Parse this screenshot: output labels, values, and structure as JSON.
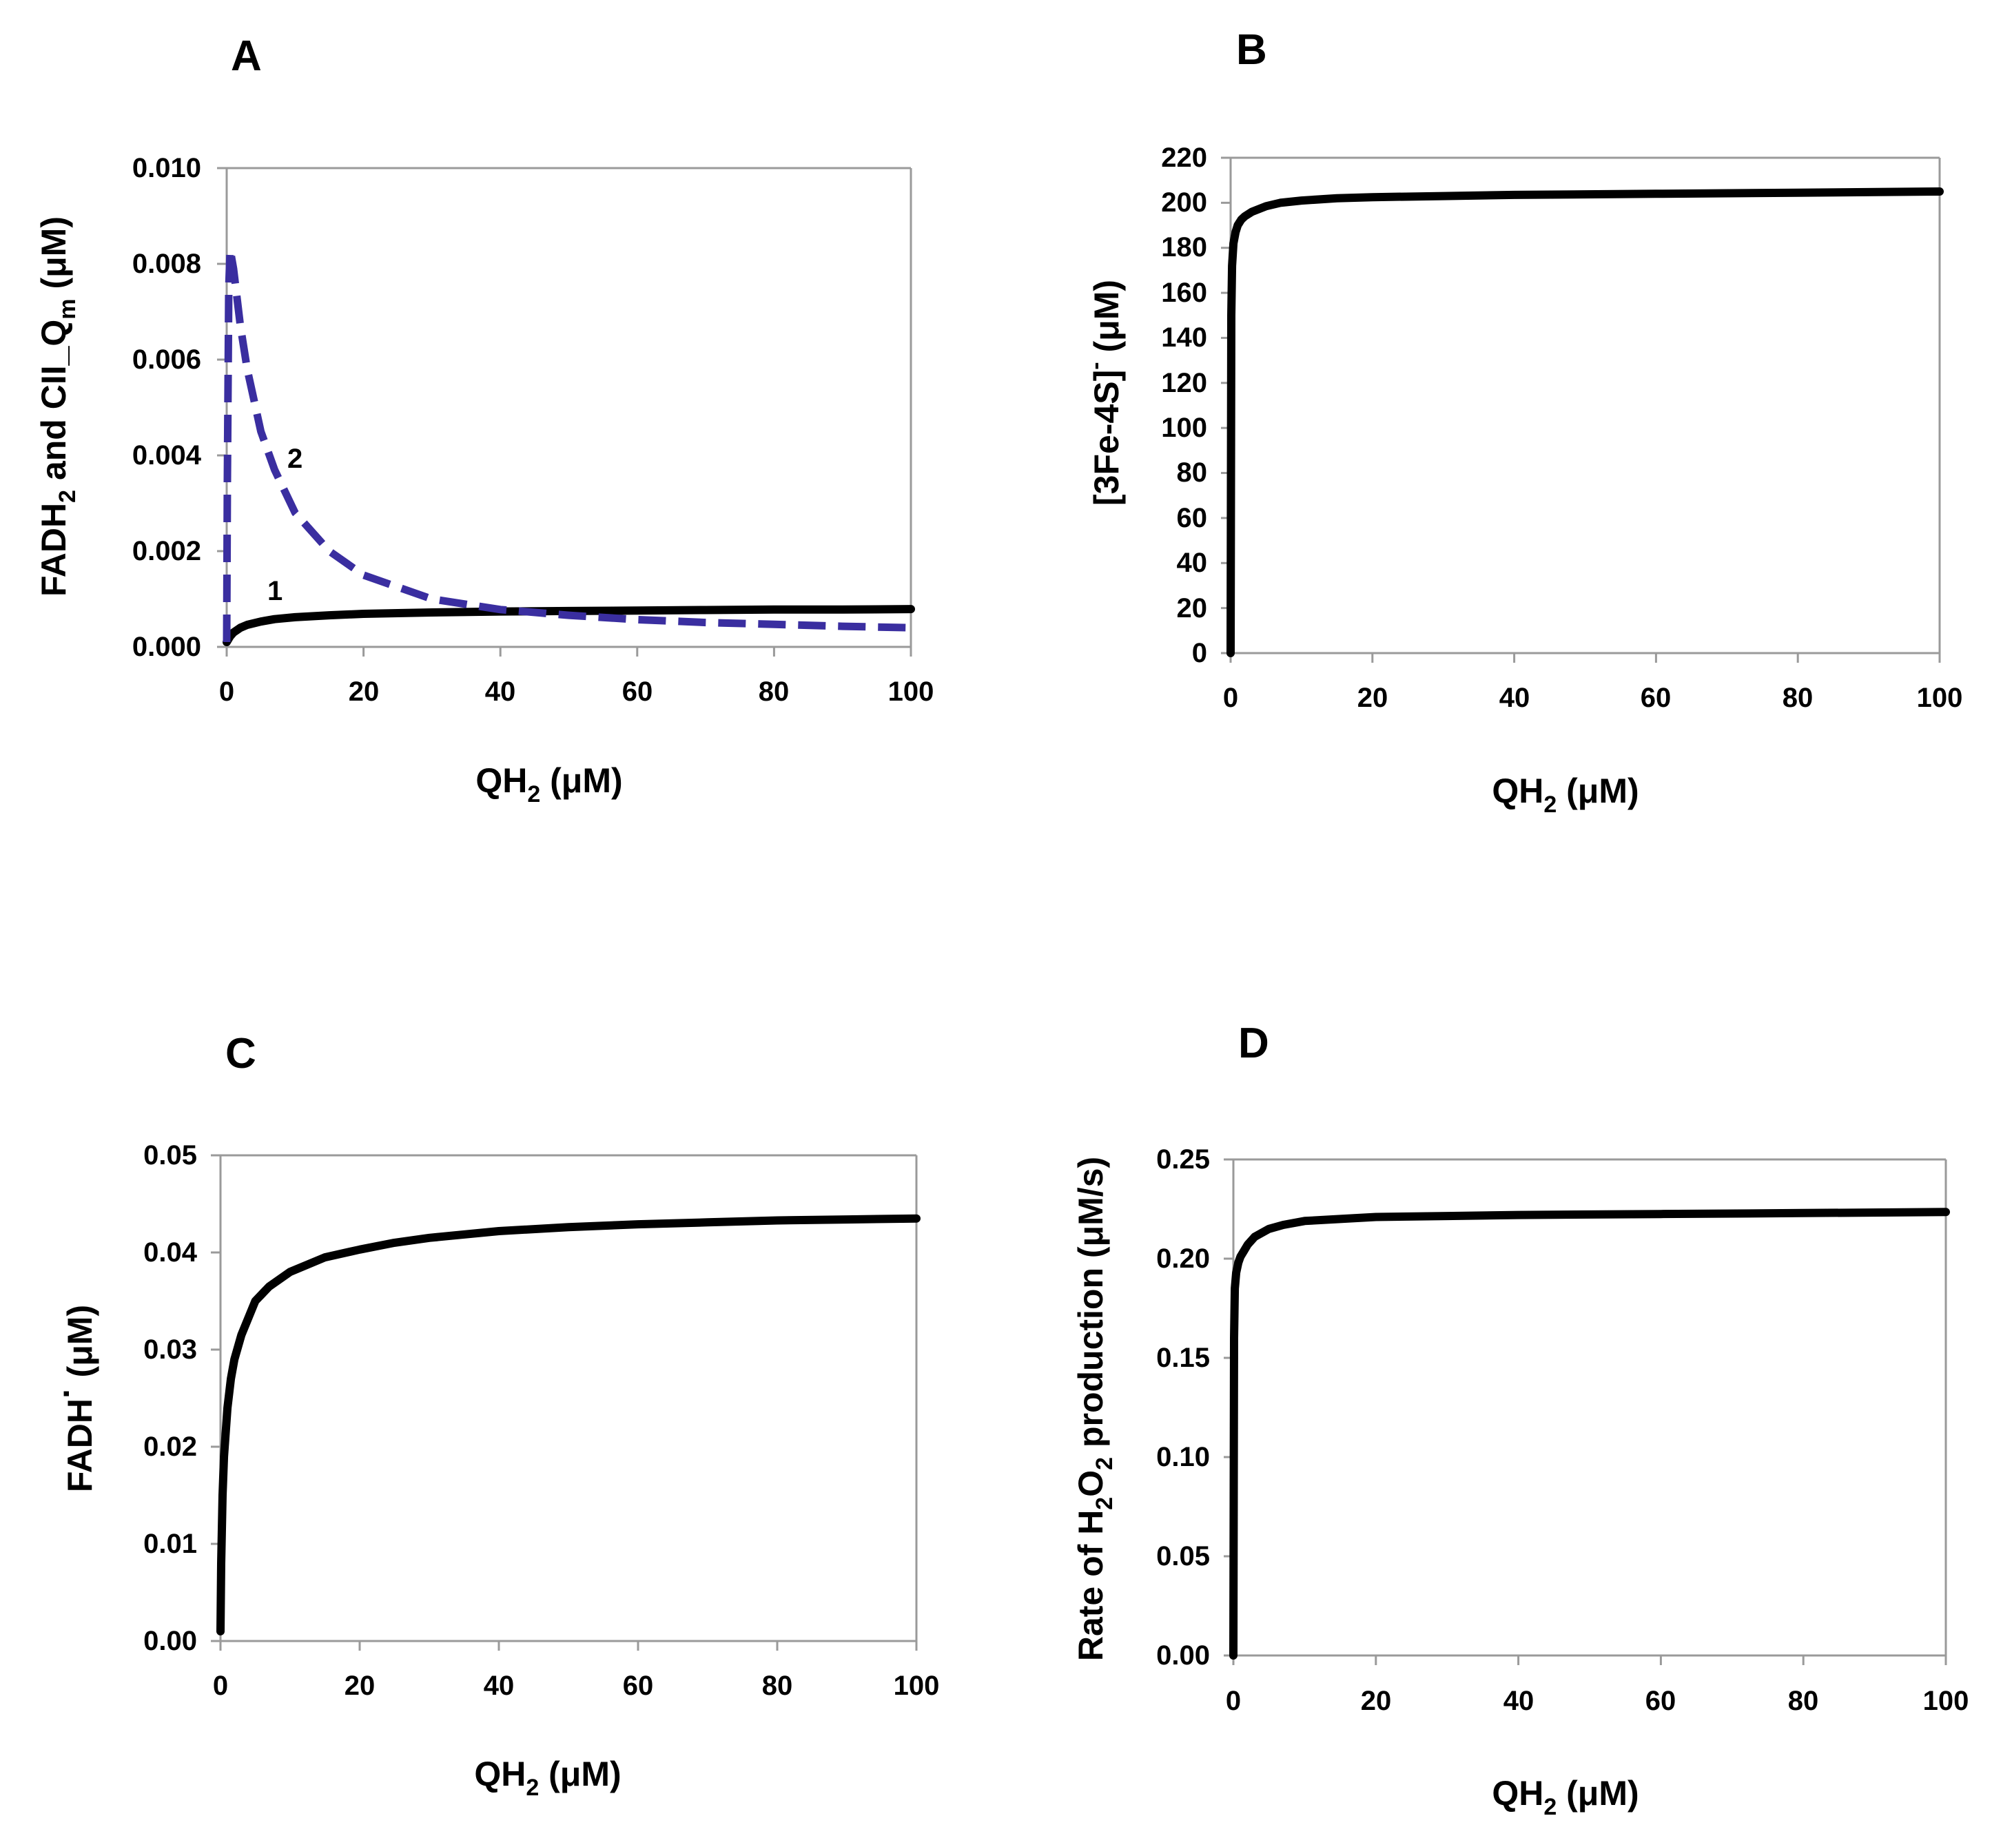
{
  "chart_data": [
    {
      "panel": "A",
      "type": "line",
      "xlabel_main": "QH",
      "xlabel_sub": "2",
      "xlabel_tail": " (μM)",
      "ylabel_parts": [
        "FADH",
        "2",
        " and CII_Q",
        "m",
        "  (μM)"
      ],
      "xlim": [
        0,
        100
      ],
      "ylim": [
        0,
        0.01
      ],
      "xticks": [
        "0",
        "20",
        "40",
        "60",
        "80",
        "100"
      ],
      "yticks": [
        "0.000",
        "0.002",
        "0.004",
        "0.006",
        "0.008",
        "0.010"
      ],
      "grid": false,
      "series": [
        {
          "name": "1",
          "color": "#000000",
          "style": "solid",
          "x": [
            0,
            0.5,
            1,
            2,
            3,
            5,
            7,
            10,
            15,
            20,
            30,
            40,
            50,
            60,
            70,
            80,
            90,
            100
          ],
          "y": [
            0.0001,
            0.00022,
            0.0003,
            0.0004,
            0.00046,
            0.00053,
            0.00058,
            0.00062,
            0.00066,
            0.00069,
            0.00072,
            0.00074,
            0.00075,
            0.00076,
            0.00077,
            0.00078,
            0.00078,
            0.00079
          ]
        },
        {
          "name": "2",
          "color": "#3a2ea0",
          "style": "dashed",
          "x": [
            0,
            0.1,
            0.3,
            0.5,
            1,
            2,
            3,
            5,
            7,
            10,
            15,
            20,
            30,
            40,
            50,
            60,
            70,
            80,
            90,
            100
          ],
          "y": [
            0.0001,
            0.0035,
            0.0075,
            0.0083,
            0.0079,
            0.0067,
            0.0058,
            0.0045,
            0.0037,
            0.0028,
            0.002,
            0.0015,
            0.001,
            0.00078,
            0.00066,
            0.00057,
            0.00051,
            0.00047,
            0.00043,
            0.0004
          ]
        }
      ]
    },
    {
      "panel": "B",
      "type": "line",
      "xlabel_main": "QH",
      "xlabel_sub": "2",
      "xlabel_tail": " (μM)",
      "ylabel_parts": [
        "[3Fe-4S]",
        "-",
        "  (μM)"
      ],
      "xlim": [
        0,
        100
      ],
      "ylim": [
        0,
        220
      ],
      "xticks": [
        "0",
        "20",
        "40",
        "60",
        "80",
        "100"
      ],
      "yticks": [
        "0",
        "20",
        "40",
        "60",
        "80",
        "100",
        "120",
        "140",
        "160",
        "180",
        "200",
        "220"
      ],
      "grid": false,
      "series": [
        {
          "color": "#000000",
          "style": "solid",
          "x": [
            0,
            0.1,
            0.2,
            0.4,
            0.7,
            1,
            1.5,
            2,
            3,
            5,
            7,
            10,
            15,
            20,
            30,
            40,
            60,
            80,
            100
          ],
          "y": [
            0,
            150,
            172,
            182,
            187,
            190,
            192.5,
            194,
            196,
            198.5,
            200,
            201,
            202,
            202.5,
            203,
            203.5,
            204,
            204.5,
            205
          ]
        }
      ]
    },
    {
      "panel": "C",
      "type": "line",
      "xlabel_main": "QH",
      "xlabel_sub": "2",
      "xlabel_tail": " (μM)",
      "ylabel_parts": [
        "FADH",
        "·",
        " (μM)"
      ],
      "xlim": [
        0,
        100
      ],
      "ylim": [
        0,
        0.05
      ],
      "xticks": [
        "0",
        "20",
        "40",
        "60",
        "80",
        "100"
      ],
      "yticks": [
        "0.00",
        "0.01",
        "0.02",
        "0.03",
        "0.04",
        "0.05"
      ],
      "grid": false,
      "series": [
        {
          "color": "#000000",
          "style": "solid",
          "x": [
            0,
            0.1,
            0.3,
            0.5,
            1,
            1.5,
            2,
            3,
            5,
            7,
            10,
            15,
            20,
            25,
            30,
            40,
            50,
            60,
            70,
            80,
            90,
            100
          ],
          "y": [
            0.001,
            0.008,
            0.015,
            0.019,
            0.024,
            0.027,
            0.029,
            0.0315,
            0.035,
            0.0365,
            0.038,
            0.0395,
            0.0403,
            0.041,
            0.0415,
            0.0422,
            0.0426,
            0.0429,
            0.0431,
            0.0433,
            0.0434,
            0.0435
          ]
        }
      ]
    },
    {
      "panel": "D",
      "type": "line",
      "xlabel_main": "QH",
      "xlabel_sub": "2",
      "xlabel_tail": " (μM)",
      "ylabel_parts": [
        "Rate of H",
        "2",
        "O",
        "2",
        " production (μM/s)"
      ],
      "xlim": [
        0,
        100
      ],
      "ylim": [
        0,
        0.25
      ],
      "xticks": [
        "0",
        "20",
        "40",
        "60",
        "80",
        "100"
      ],
      "yticks": [
        "0.00",
        "0.05",
        "0.10",
        "0.15",
        "0.20",
        "0.25"
      ],
      "grid": false,
      "series": [
        {
          "color": "#000000",
          "style": "solid",
          "x": [
            0,
            0.1,
            0.2,
            0.4,
            0.7,
            1,
            1.5,
            2,
            3,
            5,
            7,
            10,
            15,
            20,
            30,
            40,
            60,
            80,
            100
          ],
          "y": [
            0,
            0.16,
            0.185,
            0.193,
            0.198,
            0.201,
            0.204,
            0.207,
            0.211,
            0.215,
            0.217,
            0.219,
            0.22,
            0.221,
            0.2215,
            0.222,
            0.2225,
            0.223,
            0.2235
          ]
        }
      ]
    }
  ]
}
